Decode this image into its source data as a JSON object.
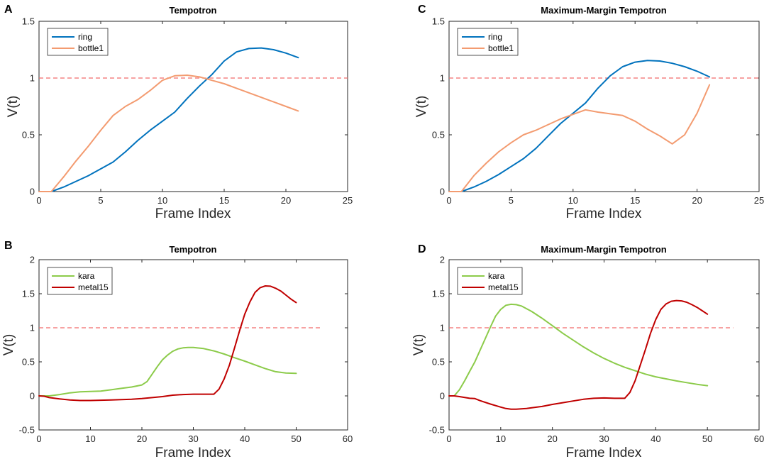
{
  "colors": {
    "blue": "#0072BD",
    "orange": "#F39B70",
    "green": "#8CCB4A",
    "red": "#C00000",
    "threshold": "#F26B6B"
  },
  "chart_data": [
    {
      "panel": "A",
      "type": "line",
      "title": "Tempotron",
      "xlabel": "Frame Index",
      "ylabel": "V(t)",
      "xlim": [
        0,
        25
      ],
      "ylim": [
        0,
        1.5
      ],
      "xticks": [
        0,
        5,
        10,
        15,
        20,
        25
      ],
      "yticks": [
        0,
        0.5,
        1,
        1.5
      ],
      "xtick_labels": [
        "0",
        "5",
        "10",
        "15",
        "20",
        "25"
      ],
      "ytick_labels": [
        "0",
        "0.5",
        "1",
        "1.5"
      ],
      "threshold": {
        "y": 1,
        "x": [
          0,
          25
        ]
      },
      "legend": "top-left",
      "series": [
        {
          "name": "ring",
          "color": "blue",
          "x": [
            0,
            1,
            2,
            3,
            4,
            5,
            6,
            7,
            8,
            9,
            10,
            11,
            12,
            13,
            14,
            15,
            16,
            17,
            18,
            19,
            20,
            21
          ],
          "y": [
            0,
            0,
            0.04,
            0.09,
            0.14,
            0.2,
            0.26,
            0.35,
            0.45,
            0.54,
            0.62,
            0.7,
            0.82,
            0.93,
            1.03,
            1.15,
            1.23,
            1.26,
            1.265,
            1.25,
            1.22,
            1.18
          ]
        },
        {
          "name": "bottle1",
          "color": "orange",
          "x": [
            0,
            1,
            2,
            3,
            4,
            5,
            6,
            7,
            8,
            9,
            10,
            11,
            12,
            13,
            14,
            15,
            16,
            17,
            18,
            19,
            20,
            21
          ],
          "y": [
            0,
            0,
            0.13,
            0.27,
            0.4,
            0.54,
            0.67,
            0.75,
            0.81,
            0.89,
            0.98,
            1.02,
            1.025,
            1.01,
            0.98,
            0.95,
            0.91,
            0.87,
            0.83,
            0.79,
            0.75,
            0.71
          ]
        }
      ]
    },
    {
      "panel": "C",
      "type": "line",
      "title": "Maximum-Margin Tempotron",
      "xlabel": "Frame Index",
      "ylabel": "V(t)",
      "xlim": [
        0,
        25
      ],
      "ylim": [
        0,
        1.5
      ],
      "xticks": [
        0,
        5,
        10,
        15,
        20,
        25
      ],
      "yticks": [
        0,
        0.5,
        1,
        1.5
      ],
      "xtick_labels": [
        "0",
        "5",
        "10",
        "15",
        "20",
        "25"
      ],
      "ytick_labels": [
        "0",
        "0.5",
        "1",
        "1.5"
      ],
      "threshold": {
        "y": 1,
        "x": [
          0,
          25
        ]
      },
      "legend": "top-left",
      "series": [
        {
          "name": "ring",
          "color": "blue",
          "x": [
            0,
            1,
            2,
            3,
            4,
            5,
            6,
            7,
            8,
            9,
            10,
            11,
            12,
            13,
            14,
            15,
            16,
            17,
            18,
            19,
            20,
            21
          ],
          "y": [
            0,
            0,
            0.04,
            0.09,
            0.15,
            0.22,
            0.29,
            0.38,
            0.49,
            0.6,
            0.69,
            0.78,
            0.91,
            1.02,
            1.1,
            1.14,
            1.155,
            1.15,
            1.13,
            1.1,
            1.06,
            1.01
          ]
        },
        {
          "name": "bottle1",
          "color": "orange",
          "x": [
            0,
            1,
            2,
            3,
            4,
            5,
            6,
            7,
            8,
            9,
            10,
            11,
            12,
            13,
            14,
            15,
            16,
            17,
            18,
            19,
            20,
            21
          ],
          "y": [
            0,
            0,
            0.14,
            0.25,
            0.35,
            0.43,
            0.5,
            0.54,
            0.59,
            0.64,
            0.68,
            0.72,
            0.7,
            0.685,
            0.67,
            0.62,
            0.55,
            0.49,
            0.42,
            0.5,
            0.69,
            0.94
          ]
        }
      ]
    },
    {
      "panel": "B",
      "type": "line",
      "title": "Tempotron",
      "xlabel": "Frame Index",
      "ylabel": "V(t)",
      "xlim": [
        0,
        60
      ],
      "ylim": [
        -0.5,
        2
      ],
      "xticks": [
        0,
        10,
        20,
        30,
        40,
        50,
        60
      ],
      "yticks": [
        -0.5,
        0,
        0.5,
        1,
        1.5,
        2
      ],
      "xtick_labels": [
        "0",
        "10",
        "20",
        "30",
        "40",
        "50",
        "60"
      ],
      "ytick_labels": [
        "-0.5",
        "0",
        "0.5",
        "1",
        "1.5",
        "2"
      ],
      "threshold": {
        "y": 1,
        "x": [
          0,
          55
        ]
      },
      "legend": "top-left",
      "series": [
        {
          "name": "kara",
          "color": "green",
          "x": [
            0,
            2,
            4,
            6,
            8,
            10,
            12,
            14,
            16,
            18,
            20,
            21,
            22,
            23,
            24,
            25,
            26,
            27,
            28,
            29,
            30,
            32,
            34,
            36,
            38,
            40,
            42,
            44,
            46,
            48,
            50
          ],
          "y": [
            0,
            0,
            0.02,
            0.045,
            0.06,
            0.065,
            0.07,
            0.09,
            0.11,
            0.13,
            0.16,
            0.21,
            0.32,
            0.43,
            0.53,
            0.6,
            0.655,
            0.69,
            0.705,
            0.71,
            0.71,
            0.695,
            0.66,
            0.615,
            0.56,
            0.51,
            0.455,
            0.4,
            0.355,
            0.335,
            0.33
          ]
        },
        {
          "name": "metal15",
          "color": "red",
          "x": [
            0,
            1,
            2,
            4,
            6,
            8,
            10,
            12,
            14,
            16,
            18,
            20,
            22,
            24,
            26,
            28,
            30,
            32,
            34,
            35,
            36,
            37,
            38,
            39,
            40,
            41,
            42,
            43,
            44,
            45,
            46,
            47,
            48,
            49,
            50
          ],
          "y": [
            0,
            -0.005,
            -0.025,
            -0.045,
            -0.06,
            -0.068,
            -0.068,
            -0.064,
            -0.06,
            -0.055,
            -0.05,
            -0.04,
            -0.025,
            -0.01,
            0.01,
            0.02,
            0.025,
            0.025,
            0.025,
            0.1,
            0.25,
            0.45,
            0.7,
            0.96,
            1.2,
            1.38,
            1.52,
            1.59,
            1.615,
            1.61,
            1.58,
            1.54,
            1.48,
            1.42,
            1.37
          ]
        }
      ]
    },
    {
      "panel": "D",
      "type": "line",
      "title": "Maximum-Margin Tempotron",
      "xlabel": "Frame Index",
      "ylabel": "V(t)",
      "xlim": [
        0,
        60
      ],
      "ylim": [
        -0.5,
        2
      ],
      "xticks": [
        0,
        10,
        20,
        30,
        40,
        50,
        60
      ],
      "yticks": [
        -0.5,
        0,
        0.5,
        1,
        1.5,
        2
      ],
      "xtick_labels": [
        "0",
        "10",
        "20",
        "30",
        "40",
        "50",
        "60"
      ],
      "ytick_labels": [
        "-0.5",
        "0",
        "0.5",
        "1",
        "1.5",
        "2"
      ],
      "threshold": {
        "y": 1,
        "x": [
          0,
          55
        ]
      },
      "legend": "top-left",
      "series": [
        {
          "name": "kara",
          "color": "green",
          "x": [
            0,
            1,
            2,
            3,
            4,
            5,
            6,
            7,
            8,
            9,
            10,
            11,
            12,
            13,
            14,
            16,
            18,
            20,
            22,
            24,
            26,
            28,
            30,
            32,
            34,
            36,
            38,
            40,
            42,
            44,
            46,
            48,
            50
          ],
          "y": [
            0,
            0,
            0.09,
            0.22,
            0.36,
            0.5,
            0.67,
            0.84,
            1.01,
            1.17,
            1.27,
            1.33,
            1.345,
            1.34,
            1.32,
            1.24,
            1.14,
            1.03,
            0.92,
            0.82,
            0.72,
            0.63,
            0.55,
            0.48,
            0.42,
            0.37,
            0.32,
            0.28,
            0.25,
            0.22,
            0.195,
            0.17,
            0.15
          ]
        },
        {
          "name": "metal15",
          "color": "red",
          "x": [
            0,
            1,
            2,
            4,
            5,
            6,
            8,
            10,
            11,
            12,
            13,
            14,
            15,
            16,
            18,
            20,
            22,
            24,
            26,
            28,
            30,
            32,
            34,
            35,
            36,
            37,
            38,
            39,
            40,
            41,
            42,
            43,
            44,
            45,
            46,
            47,
            48,
            49,
            50
          ],
          "y": [
            0,
            0,
            -0.01,
            -0.035,
            -0.04,
            -0.07,
            -0.12,
            -0.165,
            -0.185,
            -0.195,
            -0.195,
            -0.19,
            -0.185,
            -0.175,
            -0.155,
            -0.125,
            -0.1,
            -0.075,
            -0.05,
            -0.035,
            -0.03,
            -0.035,
            -0.035,
            0.05,
            0.22,
            0.45,
            0.68,
            0.92,
            1.12,
            1.27,
            1.35,
            1.39,
            1.4,
            1.395,
            1.375,
            1.34,
            1.3,
            1.25,
            1.2
          ]
        }
      ]
    }
  ]
}
